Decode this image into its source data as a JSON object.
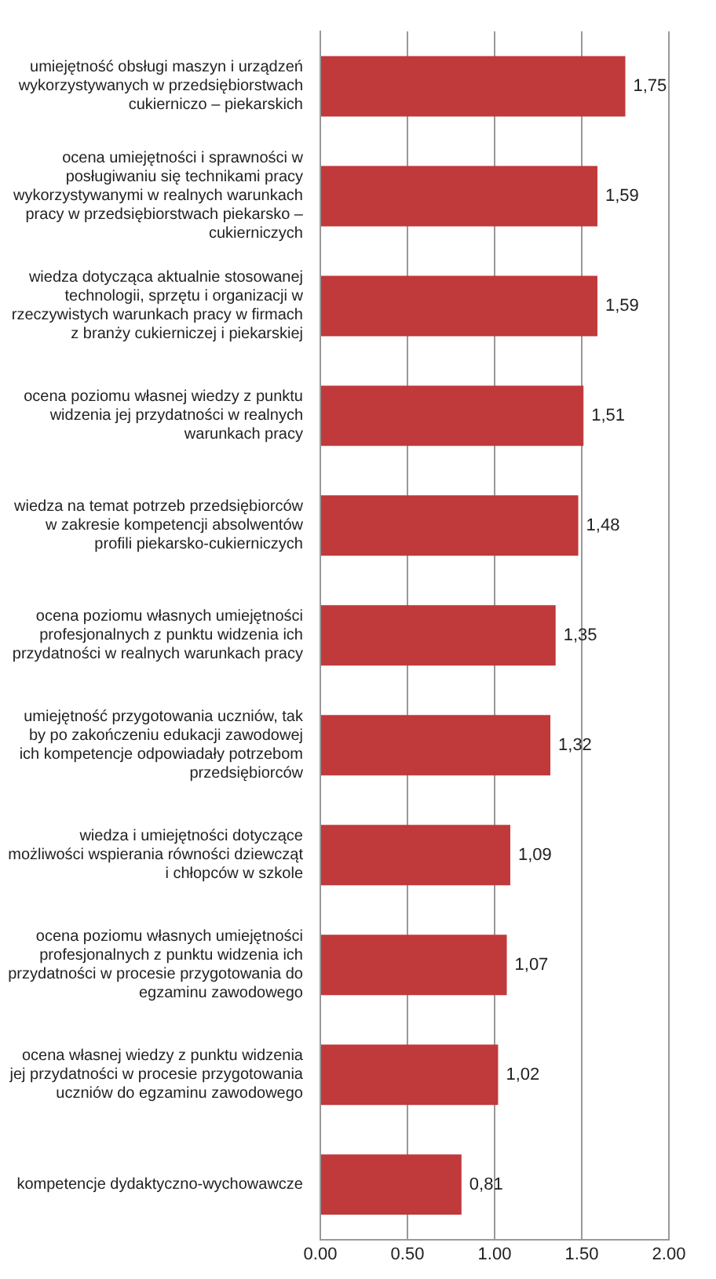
{
  "chart_data": {
    "type": "bar",
    "orientation": "horizontal",
    "categories": [
      "umiejętność obsługi maszyn i urządzeń wykorzystywanych w przedsiębiorstwach cukierniczo – piekarskich",
      "ocena umiejętności i sprawności w posługiwaniu się technikami pracy wykorzystywanymi w realnych warunkach pracy w przedsiębiorstwach piekarsko – cukierniczych",
      "wiedza dotycząca aktualnie stosowanej technologii, sprzętu i organizacji w rzeczywistych warunkach pracy w firmach z branży cukierniczej i piekarskiej",
      "ocena poziomu własnej wiedzy z punktu widzenia jej przydatności w realnych warunkach pracy",
      "wiedza na temat potrzeb przedsiębiorców w zakresie kompetencji absolwentów profili piekarsko-cukierniczych",
      "ocena poziomu własnych umiejętności profesjonalnych z punktu widzenia ich przydatności w realnych warunkach pracy",
      "umiejętność przygotowania uczniów, tak by po zakończeniu edukacji zawodowej ich kompetencje odpowiadały potrzebom przedsiębiorców",
      "wiedza i umiejętności dotyczące możliwości wspierania równości dziewcząt i chłopców w szkole",
      "ocena poziomu własnych umiejętności profesjonalnych z punktu widzenia ich przydatności w procesie przygotowania do egzaminu zawodowego",
      "ocena własnej wiedzy z punktu widzenia jej przydatności w procesie przygotowania uczniów do egzaminu zawodowego",
      "kompetencje dydaktyczno-wychowawcze"
    ],
    "values": [
      1.75,
      1.59,
      1.59,
      1.51,
      1.48,
      1.35,
      1.32,
      1.09,
      1.07,
      1.02,
      0.81
    ],
    "value_labels": [
      "1,75",
      "1,59",
      "1,59",
      "1,51",
      "1,48",
      "1,35",
      "1,32",
      "1,09",
      "1,07",
      "1,02",
      "0,81"
    ],
    "color": "#c0393b",
    "xlim": [
      0,
      2
    ],
    "xticks": [
      {
        "value": 0,
        "label": "0.00"
      },
      {
        "value": 0.5,
        "label": "0.50"
      },
      {
        "value": 1,
        "label": "1.00"
      },
      {
        "value": 1.5,
        "label": "1.50"
      },
      {
        "value": 2,
        "label": "2.00"
      }
    ],
    "grid": "x",
    "legend": false
  }
}
